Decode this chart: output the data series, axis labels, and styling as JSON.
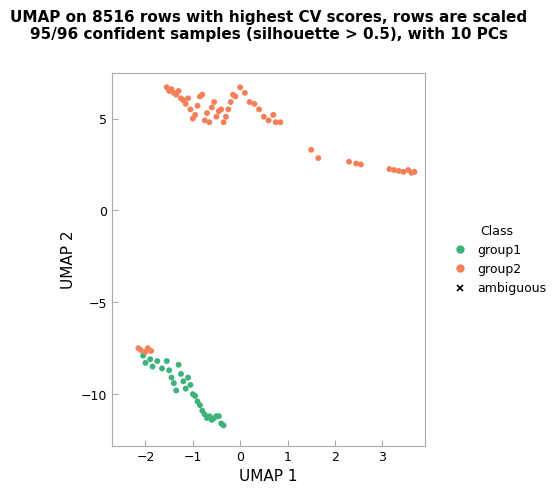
{
  "title": "UMAP on 8516 rows with highest CV scores, rows are scaled\n95/96 confident samples (silhouette > 0.5), with 10 PCs",
  "xlabel": "UMAP 1",
  "ylabel": "UMAP 2",
  "xlim": [
    -2.7,
    3.9
  ],
  "ylim": [
    -12.8,
    7.5
  ],
  "xticks": [
    -2,
    -1,
    0,
    1,
    2,
    3
  ],
  "yticks": [
    -10,
    -5,
    0,
    5
  ],
  "color_group1": "#3CB37A",
  "color_group2": "#F4805A",
  "color_ambiguous": "#000000",
  "group1_x": [
    -2.05,
    -2.0,
    -1.9,
    -1.85,
    -1.75,
    -1.65,
    -1.55,
    -1.5,
    -1.45,
    -1.4,
    -1.35,
    -1.3,
    -1.25,
    -1.2,
    -1.15,
    -1.1,
    -1.05,
    -1.0,
    -0.95,
    -0.9,
    -0.85,
    -0.8,
    -0.75,
    -0.7,
    -0.65,
    -0.6,
    -0.55,
    -0.5,
    -0.45,
    -0.4,
    -0.35
  ],
  "group1_y": [
    -7.9,
    -8.3,
    -8.1,
    -8.5,
    -8.2,
    -8.6,
    -8.2,
    -8.7,
    -9.1,
    -9.4,
    -9.8,
    -8.4,
    -8.9,
    -9.3,
    -9.7,
    -9.1,
    -9.5,
    -10.0,
    -10.1,
    -10.4,
    -10.6,
    -10.9,
    -11.1,
    -11.3,
    -11.2,
    -11.4,
    -11.3,
    -11.2,
    -11.2,
    -11.6,
    -11.7
  ],
  "group2_cluster1_x": [
    -1.55,
    -1.5,
    -1.45,
    -1.4,
    -1.35,
    -1.3,
    -1.25,
    -1.2,
    -1.15,
    -1.1,
    -1.05,
    -1.0,
    -0.95,
    -0.9,
    -0.85,
    -0.8,
    -0.75,
    -0.7,
    -0.65,
    -0.6,
    -0.55,
    -0.5,
    -0.45,
    -0.4,
    -0.35,
    -0.3,
    -0.25,
    -0.2,
    -0.15,
    -0.1,
    0.0,
    0.1,
    0.2,
    0.3,
    0.4,
    0.5,
    0.6,
    0.7,
    0.75,
    0.85
  ],
  "group2_cluster1_y": [
    6.7,
    6.5,
    6.6,
    6.4,
    6.3,
    6.5,
    6.1,
    6.0,
    5.8,
    6.1,
    5.5,
    5.0,
    5.2,
    5.7,
    6.2,
    6.3,
    4.9,
    5.3,
    4.8,
    5.6,
    5.9,
    5.1,
    5.4,
    5.5,
    4.8,
    5.1,
    5.5,
    5.9,
    6.3,
    6.2,
    6.7,
    6.4,
    5.9,
    5.8,
    5.5,
    5.1,
    4.9,
    5.2,
    4.8,
    4.8
  ],
  "group2_cluster2_x": [
    1.5,
    1.65,
    2.3,
    2.45,
    2.55,
    3.15,
    3.25,
    3.35,
    3.45,
    3.55,
    3.62,
    3.68
  ],
  "group2_cluster2_y": [
    3.3,
    2.85,
    2.65,
    2.55,
    2.5,
    2.25,
    2.2,
    2.15,
    2.1,
    2.2,
    2.05,
    2.1
  ],
  "group2_extra_x": [
    -2.15,
    -2.1,
    -2.0,
    -1.95,
    -1.88
  ],
  "group2_extra_y": [
    -7.5,
    -7.6,
    -7.7,
    -7.5,
    -7.65
  ],
  "background_color": "#ffffff",
  "legend_title": "Class",
  "legend_title_fontsize": 9,
  "legend_fontsize": 9,
  "title_fontsize": 11,
  "axis_label_fontsize": 11,
  "tick_fontsize": 9
}
